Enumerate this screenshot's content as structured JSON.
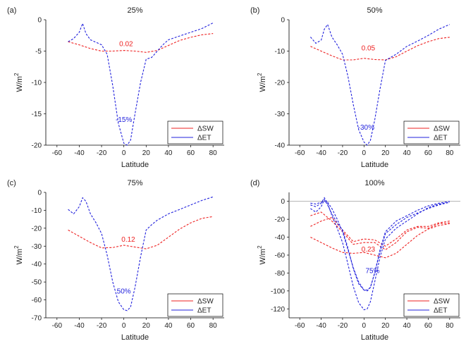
{
  "colors": {
    "sw": "#ee2222",
    "et": "#2222dd",
    "zero": "#999999"
  },
  "chart_data": [
    {
      "type": "line",
      "panel_label": "(a)",
      "title": "25%",
      "xlabel": "Latitude",
      "ylabel": "W/m",
      "ylabel_sup": "2",
      "xlim": [
        -70,
        90
      ],
      "ylim": [
        -20,
        0
      ],
      "xticks": [
        -60,
        -40,
        -20,
        0,
        20,
        40,
        60,
        80
      ],
      "yticks": [
        -20,
        -15,
        -10,
        -5,
        0
      ],
      "legend": [
        "ΔSW",
        "ΔET"
      ],
      "legend_position": "bottom-right",
      "zero_line": false,
      "annotations": [
        {
          "text": "0.02",
          "x": 2,
          "y": -4.2,
          "color": "sw"
        },
        {
          "text": "-15%",
          "x": 0,
          "y": -16.3,
          "color": "et"
        }
      ],
      "series": [
        {
          "color": "sw",
          "x": [
            -50,
            -40,
            -30,
            -20,
            -10,
            0,
            10,
            20,
            30,
            40,
            50,
            60,
            70,
            80
          ],
          "y": [
            -3.5,
            -4.0,
            -4.6,
            -5.0,
            -5.0,
            -4.9,
            -5.0,
            -5.2,
            -4.9,
            -4.1,
            -3.3,
            -2.8,
            -2.4,
            -2.2
          ]
        },
        {
          "color": "et",
          "x": [
            -50,
            -45,
            -40,
            -37,
            -34,
            -30,
            -25,
            -20,
            -15,
            -10,
            -5,
            0,
            3,
            6,
            10,
            15,
            20,
            25,
            30,
            35,
            40,
            50,
            60,
            70,
            80
          ],
          "y": [
            -3.5,
            -3.0,
            -2.0,
            -0.6,
            -2.2,
            -3.2,
            -3.6,
            -4.0,
            -5.5,
            -10.5,
            -16.5,
            -19.7,
            -20.0,
            -19.2,
            -15.0,
            -10.0,
            -6.3,
            -6.0,
            -5.0,
            -4.0,
            -3.2,
            -2.6,
            -2.0,
            -1.4,
            -0.5
          ]
        }
      ]
    },
    {
      "type": "line",
      "panel_label": "(b)",
      "title": "50%",
      "xlabel": "Latitude",
      "ylabel": "W/m",
      "ylabel_sup": "2",
      "xlim": [
        -70,
        90
      ],
      "ylim": [
        -40,
        0
      ],
      "xticks": [
        -60,
        -40,
        -20,
        0,
        20,
        40,
        60,
        80
      ],
      "yticks": [
        -40,
        -30,
        -20,
        -10,
        0
      ],
      "legend": [
        "ΔSW",
        "ΔET"
      ],
      "legend_position": "bottom-right",
      "zero_line": false,
      "annotations": [
        {
          "text": "0.05",
          "x": 4,
          "y": -9.8,
          "color": "sw"
        },
        {
          "text": "-30%",
          "x": 2,
          "y": -35.0,
          "color": "et"
        }
      ],
      "series": [
        {
          "color": "sw",
          "x": [
            -50,
            -40,
            -30,
            -20,
            -10,
            0,
            10,
            20,
            30,
            40,
            50,
            60,
            70,
            80
          ],
          "y": [
            -8.5,
            -10.0,
            -11.5,
            -12.8,
            -12.8,
            -12.3,
            -12.7,
            -12.8,
            -11.8,
            -10.0,
            -8.3,
            -7.0,
            -6.0,
            -5.6
          ]
        },
        {
          "color": "et",
          "x": [
            -50,
            -45,
            -40,
            -37,
            -34,
            -30,
            -25,
            -20,
            -15,
            -10,
            -5,
            0,
            3,
            6,
            10,
            15,
            20,
            25,
            30,
            40,
            50,
            60,
            70,
            80
          ],
          "y": [
            -5.5,
            -7.5,
            -6.5,
            -3.0,
            -1.5,
            -5.5,
            -8.0,
            -11.0,
            -18.0,
            -27.0,
            -35.0,
            -39.0,
            -40.0,
            -38.5,
            -32.0,
            -22.0,
            -13.0,
            -12.0,
            -11.0,
            -8.5,
            -6.8,
            -5.0,
            -3.0,
            -1.5
          ]
        }
      ]
    },
    {
      "type": "line",
      "panel_label": "(c)",
      "title": "75%",
      "xlabel": "Latitude",
      "ylabel": "W/m",
      "ylabel_sup": "2",
      "xlim": [
        -70,
        90
      ],
      "ylim": [
        -70,
        0
      ],
      "xticks": [
        -60,
        -40,
        -20,
        0,
        20,
        40,
        60,
        80
      ],
      "yticks": [
        -70,
        -60,
        -50,
        -40,
        -30,
        -20,
        -10,
        0
      ],
      "legend": [
        "ΔSW",
        "ΔET"
      ],
      "legend_position": "bottom-right",
      "zero_line": false,
      "annotations": [
        {
          "text": "0.12",
          "x": 4,
          "y": -27.5,
          "color": "sw"
        },
        {
          "text": "50%",
          "x": 0,
          "y": -56.5,
          "color": "et"
        }
      ],
      "series": [
        {
          "color": "sw",
          "x": [
            -50,
            -40,
            -30,
            -20,
            -10,
            0,
            10,
            20,
            30,
            40,
            50,
            60,
            70,
            80
          ],
          "y": [
            -21.0,
            -24.5,
            -28.0,
            -31.0,
            -30.8,
            -29.5,
            -30.5,
            -31.5,
            -29.5,
            -25.0,
            -20.5,
            -17.0,
            -14.5,
            -13.5
          ]
        },
        {
          "color": "et",
          "x": [
            -50,
            -45,
            -40,
            -37,
            -34,
            -30,
            -25,
            -20,
            -15,
            -10,
            -5,
            0,
            3,
            6,
            10,
            15,
            20,
            25,
            30,
            40,
            50,
            60,
            70,
            80
          ],
          "y": [
            -9.5,
            -12.0,
            -8.0,
            -3.0,
            -5.0,
            -12.0,
            -17.0,
            -23.0,
            -35.0,
            -50.0,
            -61.0,
            -65.5,
            -66.0,
            -64.0,
            -53.0,
            -36.0,
            -21.0,
            -18.0,
            -15.5,
            -12.0,
            -9.5,
            -7.0,
            -4.5,
            -2.5
          ]
        }
      ]
    },
    {
      "type": "line",
      "panel_label": "(d)",
      "title": "100%",
      "xlabel": "Latitude",
      "ylabel": "W/m",
      "ylabel_sup": "2",
      "xlim": [
        -70,
        90
      ],
      "ylim": [
        -130,
        10
      ],
      "xticks": [
        -60,
        -40,
        -20,
        0,
        20,
        40,
        60,
        80
      ],
      "yticks": [
        -120,
        -100,
        -80,
        -60,
        -40,
        -20,
        0
      ],
      "legend": [
        "ΔSW",
        "ΔET"
      ],
      "legend_position": "bottom-right",
      "zero_line": true,
      "annotations": [
        {
          "text": "0.23",
          "x": 4,
          "y": -56.0,
          "color": "sw"
        },
        {
          "text": "75%",
          "x": 8,
          "y": -80.0,
          "color": "et"
        }
      ],
      "series": [
        {
          "color": "sw",
          "x": [
            -50,
            -40,
            -30,
            -20,
            -10,
            0,
            10,
            20,
            30,
            40,
            50,
            60,
            70,
            80
          ],
          "y": [
            -40.0,
            -46.0,
            -52.0,
            -57.0,
            -58.0,
            -57.0,
            -60.0,
            -63.0,
            -58.0,
            -48.0,
            -38.0,
            -31.0,
            -27.0,
            -25.0
          ]
        },
        {
          "color": "sw",
          "x": [
            -50,
            -40,
            -30,
            -20,
            -10,
            0,
            10,
            20,
            30,
            40,
            50,
            60,
            70,
            80
          ],
          "y": [
            -28.0,
            -22.0,
            -18.0,
            -32.0,
            -45.0,
            -42.0,
            -43.0,
            -50.0,
            -42.0,
            -32.0,
            -28.0,
            -28.0,
            -24.0,
            -22.0
          ]
        },
        {
          "color": "sw",
          "x": [
            -50,
            -40,
            -30,
            -20,
            -10,
            0,
            10,
            20,
            30,
            40,
            50,
            60,
            70,
            80
          ],
          "y": [
            -16.0,
            -12.0,
            -22.0,
            -34.0,
            -48.0,
            -46.0,
            -46.0,
            -54.0,
            -46.0,
            -34.0,
            -29.0,
            -30.0,
            -25.0,
            -24.0
          ]
        },
        {
          "color": "et",
          "x": [
            -50,
            -45,
            -40,
            -37,
            -34,
            -30,
            -25,
            -20,
            -15,
            -10,
            -5,
            0,
            3,
            6,
            10,
            15,
            20,
            25,
            30,
            40,
            50,
            60,
            70,
            80
          ],
          "y": [
            -8.0,
            -12.0,
            -6.0,
            2.0,
            -4.0,
            -14.0,
            -24.0,
            -32.0,
            -52.0,
            -75.0,
            -92.0,
            -99.0,
            -99.0,
            -96.0,
            -80.0,
            -56.0,
            -36.0,
            -31.0,
            -26.0,
            -18.0,
            -13.0,
            -8.0,
            -4.0,
            -1.0
          ]
        },
        {
          "color": "et",
          "x": [
            -50,
            -45,
            -40,
            -37,
            -34,
            -30,
            -25,
            -20,
            -15,
            -10,
            -5,
            0,
            3,
            6,
            10,
            15,
            20,
            25,
            30,
            40,
            50,
            60,
            70,
            80
          ],
          "y": [
            -4.0,
            -6.0,
            -2.0,
            4.0,
            -2.0,
            -16.0,
            -30.0,
            -46.0,
            -70.0,
            -95.0,
            -113.0,
            -121.0,
            -120.0,
            -112.0,
            -90.0,
            -62.0,
            -42.0,
            -36.0,
            -30.0,
            -22.0,
            -14.0,
            -7.0,
            -3.0,
            -1.0
          ]
        },
        {
          "color": "et",
          "x": [
            -50,
            -45,
            -40,
            -37,
            -34,
            -30,
            -25,
            -20,
            -15,
            -10,
            -5,
            0,
            3,
            6,
            10,
            15,
            20,
            25,
            30,
            40,
            50,
            60,
            70,
            80
          ],
          "y": [
            -2.0,
            -3.0,
            -1.0,
            0.0,
            -1.0,
            -8.0,
            -20.0,
            -34.0,
            -54.0,
            -74.0,
            -90.0,
            -99.0,
            -100.0,
            -96.0,
            -80.0,
            -54.0,
            -34.0,
            -28.0,
            -22.0,
            -16.0,
            -10.0,
            -5.0,
            -2.0,
            0.0
          ]
        }
      ]
    }
  ]
}
